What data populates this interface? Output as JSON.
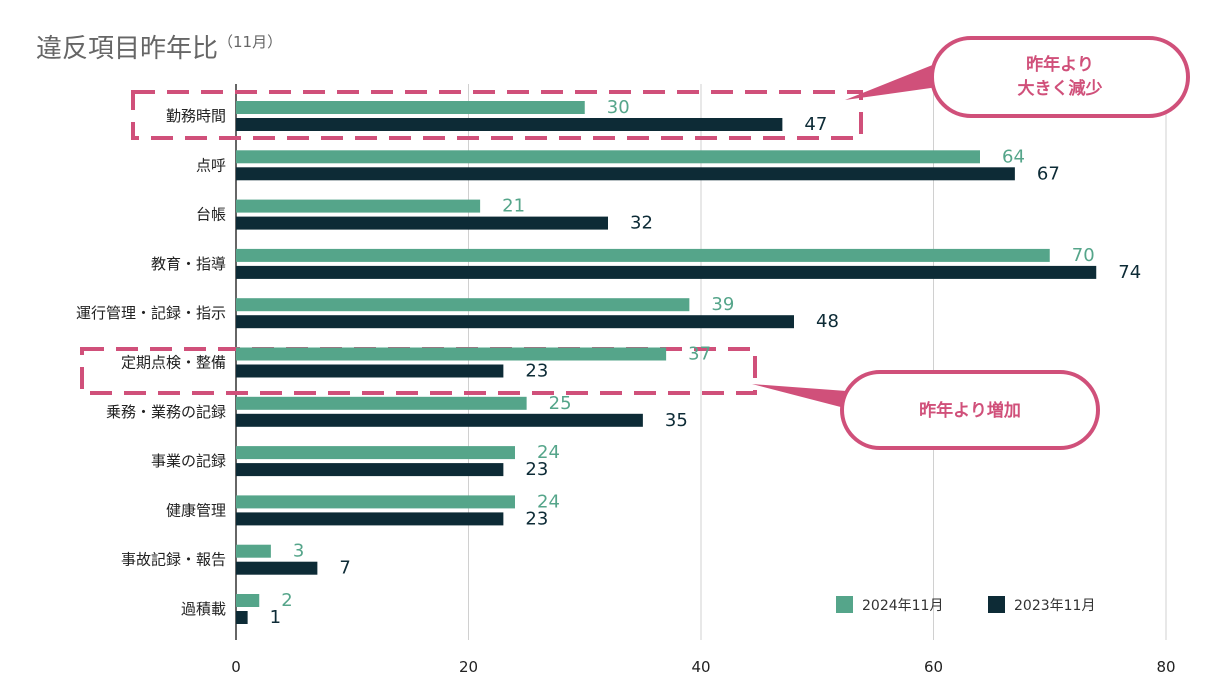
{
  "title": "違反項目昨年比",
  "subtitle": "（11月）",
  "chart_data": {
    "type": "bar",
    "orientation": "horizontal",
    "categories": [
      "勤務時間",
      "点呼",
      "台帳",
      "教育・指導",
      "運行管理・記録・指示",
      "定期点検・整備",
      "乗務・業務の記録",
      "事業の記録",
      "健康管理",
      "事故記録・報告",
      "過積載"
    ],
    "series": [
      {
        "name": "2024年11月",
        "color": "#55a58a",
        "values": [
          30,
          64,
          21,
          70,
          39,
          37,
          25,
          24,
          24,
          3,
          2
        ]
      },
      {
        "name": "2023年11月",
        "color": "#0d2b36",
        "values": [
          47,
          67,
          32,
          74,
          48,
          23,
          35,
          23,
          23,
          7,
          1
        ]
      }
    ],
    "xlim": [
      0,
      80
    ],
    "xticks": [
      "0",
      "20",
      "40",
      "60",
      "80"
    ],
    "grid": true,
    "legend_position": "bottom-right"
  },
  "annotations": [
    {
      "lines": [
        "昨年より",
        "大きく減少"
      ],
      "target": "勤務時間"
    },
    {
      "lines": [
        "昨年より増加"
      ],
      "target": "定期点検・整備"
    }
  ],
  "colors": {
    "accent": "#d0507a",
    "grid": "#d0d0d0"
  }
}
